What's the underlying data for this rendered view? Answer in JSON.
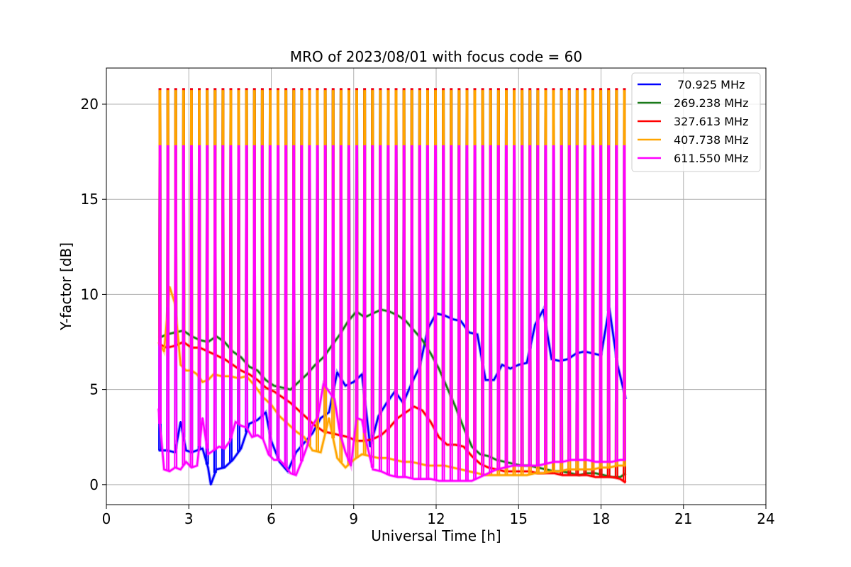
{
  "chart_data": {
    "type": "line",
    "title": "MRO of 2023/08/01 with focus code = 60",
    "xlabel": "Universal Time [h]",
    "ylabel": "Y-factor [dB]",
    "xlim": [
      0,
      24
    ],
    "ylim": [
      -1.05,
      21.9
    ],
    "xticks": [
      0,
      3,
      6,
      9,
      12,
      15,
      18,
      21,
      24
    ],
    "yticks": [
      0,
      5,
      10,
      15,
      20
    ],
    "grid": true,
    "legend_position": "top-right",
    "calibration_spikes": {
      "start_h": 1.95,
      "end_h": 18.85,
      "count": 60,
      "peak_dB_by_series": [
        20.8,
        20.7,
        20.8,
        20.7,
        17.8
      ]
    },
    "series": [
      {
        "name": " 70.925 MHz",
        "color": "#0000ff",
        "x": [
          1.9,
          2.2,
          2.5,
          2.7,
          2.9,
          3.1,
          3.3,
          3.5,
          3.7,
          3.8,
          4.0,
          4.3,
          4.6,
          4.9,
          5.2,
          5.5,
          5.8,
          6.0,
          6.3,
          6.6,
          6.9,
          7.2,
          7.5,
          7.8,
          8.1,
          8.4,
          8.7,
          9.0,
          9.3,
          9.6,
          9.9,
          10.2,
          10.5,
          10.8,
          11.1,
          11.4,
          11.7,
          12.0,
          12.3,
          12.6,
          12.9,
          13.2,
          13.5,
          13.8,
          14.1,
          14.4,
          14.7,
          15.0,
          15.3,
          15.6,
          15.9,
          16.2,
          16.5,
          16.8,
          17.1,
          17.4,
          17.7,
          18.0,
          18.3,
          18.6,
          18.9
        ],
        "y": [
          1.8,
          1.8,
          1.7,
          3.3,
          1.8,
          1.7,
          1.8,
          1.9,
          0.9,
          0.0,
          0.8,
          0.9,
          1.3,
          1.9,
          3.2,
          3.4,
          3.8,
          2.3,
          1.2,
          0.7,
          1.7,
          2.2,
          2.7,
          3.5,
          3.8,
          5.9,
          5.2,
          5.4,
          5.8,
          2.0,
          3.6,
          4.3,
          4.9,
          4.3,
          5.3,
          6.2,
          8.2,
          9.0,
          8.9,
          8.7,
          8.6,
          8.0,
          7.9,
          5.5,
          5.5,
          6.3,
          6.1,
          6.3,
          6.4,
          8.4,
          9.2,
          6.6,
          6.5,
          6.6,
          6.9,
          7.0,
          6.9,
          6.8,
          9.3,
          6.3,
          4.5
        ]
      },
      {
        "name": "269.238 MHz",
        "color": "#1a7a1a",
        "x": [
          1.9,
          2.2,
          2.5,
          2.8,
          3.1,
          3.4,
          3.7,
          4.0,
          4.3,
          4.6,
          4.9,
          5.2,
          5.5,
          5.8,
          6.1,
          6.4,
          6.7,
          7.0,
          7.3,
          7.6,
          7.9,
          8.2,
          8.5,
          8.8,
          9.1,
          9.4,
          9.7,
          10.0,
          10.3,
          10.6,
          10.9,
          11.2,
          11.5,
          11.8,
          12.1,
          12.4,
          12.7,
          13.0,
          13.3,
          13.6,
          13.9,
          14.2,
          14.5,
          14.8,
          15.1,
          15.4,
          15.7,
          16.0,
          16.3,
          16.6,
          16.9,
          17.2,
          17.5,
          17.8,
          18.1,
          18.4,
          18.7,
          18.9
        ],
        "y": [
          7.7,
          7.9,
          8.0,
          8.1,
          7.8,
          7.6,
          7.5,
          7.8,
          7.5,
          7.0,
          6.7,
          6.2,
          6.0,
          5.5,
          5.2,
          5.1,
          5.0,
          5.4,
          5.8,
          6.3,
          6.7,
          7.3,
          7.9,
          8.6,
          9.1,
          8.8,
          9.0,
          9.2,
          9.1,
          8.9,
          8.6,
          8.1,
          7.6,
          6.9,
          6.1,
          5.1,
          4.1,
          3.0,
          2.0,
          1.6,
          1.5,
          1.3,
          1.2,
          1.1,
          1.0,
          1.0,
          0.9,
          0.8,
          0.7,
          0.7,
          0.6,
          0.5,
          0.6,
          0.6,
          0.5,
          0.4,
          0.4,
          0.6
        ]
      },
      {
        "name": "327.613 MHz",
        "color": "#ff0000",
        "x": [
          1.9,
          2.2,
          2.5,
          2.8,
          3.1,
          3.4,
          3.7,
          4.0,
          4.3,
          4.6,
          4.9,
          5.2,
          5.5,
          5.8,
          6.1,
          6.4,
          6.7,
          7.0,
          7.3,
          7.6,
          7.9,
          8.2,
          8.5,
          8.8,
          9.1,
          9.4,
          9.7,
          10.0,
          10.3,
          10.6,
          10.9,
          11.2,
          11.5,
          11.8,
          12.1,
          12.4,
          12.7,
          13.0,
          13.3,
          13.6,
          13.9,
          14.2,
          14.5,
          14.8,
          15.1,
          15.4,
          15.7,
          16.0,
          16.3,
          16.6,
          16.9,
          17.2,
          17.5,
          17.8,
          18.1,
          18.4,
          18.7,
          18.9
        ],
        "y": [
          7.4,
          7.2,
          7.3,
          7.5,
          7.2,
          7.2,
          7.0,
          6.8,
          6.6,
          6.3,
          6.0,
          5.8,
          5.5,
          5.1,
          4.9,
          4.6,
          4.3,
          3.9,
          3.5,
          3.1,
          2.8,
          2.7,
          2.6,
          2.5,
          2.3,
          2.3,
          2.4,
          2.6,
          3.0,
          3.5,
          3.8,
          4.1,
          3.9,
          3.3,
          2.5,
          2.1,
          2.1,
          2.0,
          1.5,
          1.1,
          0.9,
          0.8,
          0.7,
          0.7,
          0.7,
          0.7,
          0.6,
          0.6,
          0.6,
          0.5,
          0.5,
          0.5,
          0.5,
          0.4,
          0.4,
          0.4,
          0.3,
          0.1
        ]
      },
      {
        "name": "407.738 MHz",
        "color": "#ffa500",
        "x": [
          1.9,
          2.1,
          2.3,
          2.5,
          2.7,
          2.9,
          3.1,
          3.3,
          3.5,
          3.7,
          3.9,
          4.2,
          4.5,
          4.8,
          5.1,
          5.4,
          5.7,
          6.0,
          6.3,
          6.6,
          6.9,
          7.2,
          7.5,
          7.8,
          8.1,
          8.4,
          8.7,
          9.0,
          9.3,
          9.6,
          9.9,
          10.2,
          10.5,
          10.8,
          11.1,
          11.4,
          11.7,
          12.0,
          12.3,
          12.6,
          12.9,
          13.2,
          13.5,
          13.8,
          14.1,
          14.4,
          14.7,
          15.0,
          15.3,
          15.6,
          15.9,
          16.2,
          16.5,
          16.8,
          17.1,
          17.4,
          17.7,
          18.0,
          18.3,
          18.6,
          18.9
        ],
        "y": [
          7.5,
          7.0,
          10.4,
          9.5,
          6.3,
          6.0,
          6.0,
          5.8,
          5.4,
          5.5,
          5.8,
          5.7,
          5.7,
          5.6,
          5.7,
          5.2,
          4.6,
          4.2,
          3.6,
          3.2,
          2.8,
          2.5,
          1.8,
          1.7,
          3.5,
          1.4,
          0.9,
          1.3,
          1.6,
          1.5,
          1.4,
          1.4,
          1.3,
          1.2,
          1.2,
          1.1,
          1.0,
          1.0,
          1.0,
          0.9,
          0.8,
          0.7,
          0.6,
          0.5,
          0.5,
          0.5,
          0.5,
          0.5,
          0.5,
          0.6,
          0.6,
          0.7,
          0.7,
          0.8,
          0.8,
          0.8,
          0.8,
          0.9,
          0.9,
          1.0,
          1.0
        ]
      },
      {
        "name": "611.550 MHz",
        "color": "#ff00ff",
        "x": [
          1.9,
          2.1,
          2.3,
          2.5,
          2.7,
          2.9,
          3.1,
          3.3,
          3.5,
          3.7,
          3.9,
          4.1,
          4.3,
          4.5,
          4.7,
          4.9,
          5.1,
          5.3,
          5.5,
          5.7,
          5.9,
          6.1,
          6.3,
          6.5,
          6.7,
          6.9,
          7.1,
          7.3,
          7.5,
          7.7,
          7.9,
          8.1,
          8.3,
          8.5,
          8.7,
          8.9,
          9.1,
          9.3,
          9.5,
          9.7,
          10.0,
          10.3,
          10.6,
          10.9,
          11.2,
          11.5,
          11.8,
          12.1,
          12.4,
          12.7,
          13.0,
          13.3,
          13.6,
          13.9,
          14.2,
          14.5,
          14.8,
          15.1,
          15.4,
          15.7,
          16.0,
          16.3,
          16.6,
          16.9,
          17.2,
          17.5,
          17.8,
          18.1,
          18.4,
          18.7,
          18.9
        ],
        "y": [
          4.0,
          0.8,
          0.7,
          0.9,
          0.8,
          1.2,
          0.9,
          1.0,
          3.5,
          1.6,
          1.8,
          2.0,
          1.9,
          2.3,
          3.3,
          3.1,
          3.0,
          2.5,
          2.6,
          2.4,
          1.6,
          1.3,
          1.3,
          1.0,
          0.6,
          0.5,
          1.2,
          2.0,
          3.1,
          3.6,
          5.3,
          4.9,
          4.5,
          2.7,
          1.7,
          1.0,
          3.5,
          3.4,
          2.0,
          0.8,
          0.7,
          0.5,
          0.4,
          0.4,
          0.3,
          0.3,
          0.3,
          0.2,
          0.2,
          0.2,
          0.2,
          0.2,
          0.4,
          0.6,
          0.8,
          0.9,
          1.0,
          1.0,
          1.0,
          1.0,
          1.1,
          1.2,
          1.2,
          1.3,
          1.3,
          1.3,
          1.2,
          1.2,
          1.2,
          1.3,
          1.3
        ]
      }
    ]
  }
}
